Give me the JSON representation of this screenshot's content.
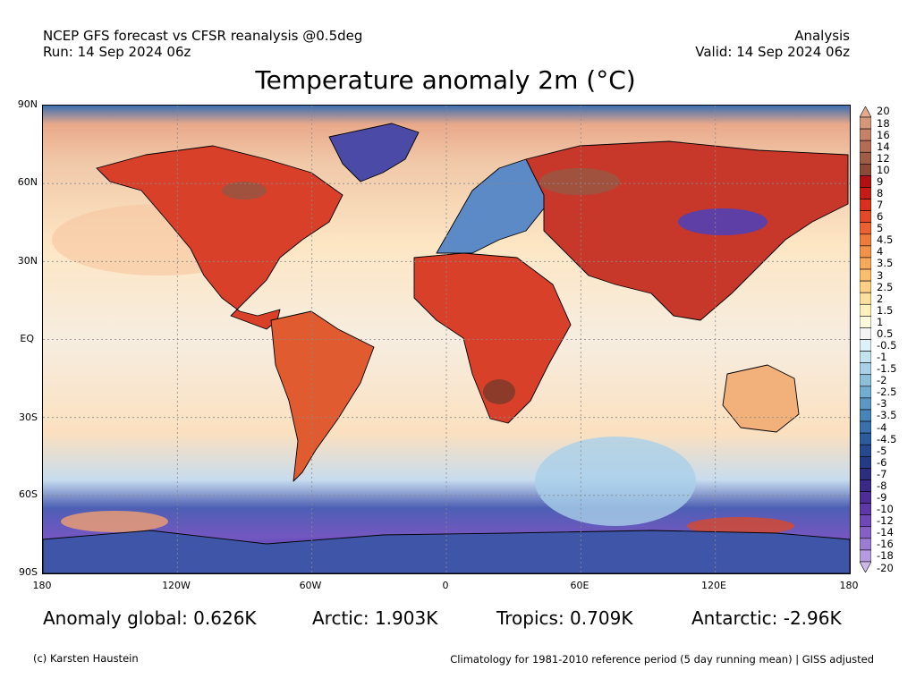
{
  "header": {
    "source": "NCEP GFS forecast vs CFSR reanalysis @0.5deg",
    "run": "Run: 14 Sep 2024 06z",
    "kind": "Analysis",
    "valid": "Valid: 14 Sep 2024 06z"
  },
  "title": "Temperature anomaly 2m (°C)",
  "map": {
    "lat_labels": [
      "90N",
      "60N",
      "30N",
      "EQ",
      "30S",
      "60S",
      "90S"
    ],
    "lon_labels": [
      "180",
      "120W",
      "60W",
      "0",
      "60E",
      "120E",
      "180"
    ],
    "grid": true,
    "projection": "equirectangular",
    "extent": {
      "lon": [
        -180,
        180
      ],
      "lat": [
        -90,
        90
      ]
    }
  },
  "colorbar": {
    "labels": [
      "20",
      "18",
      "16",
      "14",
      "12",
      "10",
      "9",
      "8",
      "7",
      "6",
      "5",
      "4.5",
      "4",
      "3.5",
      "3",
      "2.5",
      "2",
      "1.5",
      "1",
      "0.5",
      "-0.5",
      "-1",
      "-1.5",
      "-2",
      "-2.5",
      "-3",
      "-3.5",
      "-4",
      "-4.5",
      "-5",
      "-6",
      "-7",
      "-8",
      "-9",
      "-10",
      "-12",
      "-14",
      "-16",
      "-18",
      "-20"
    ],
    "colors": [
      "#e6ab8e",
      "#d7967a",
      "#c68166",
      "#b46d54",
      "#a15c45",
      "#8c4a36",
      "#b01010",
      "#c71c16",
      "#d8301d",
      "#e34828",
      "#ec6032",
      "#f07a3c",
      "#f5924a",
      "#f8a85b",
      "#fbbd70",
      "#fdd086",
      "#fee09e",
      "#fff0bc",
      "#fff9dd",
      "#f4f4f4",
      "#def0f8",
      "#c4e2f0",
      "#a8d1e7",
      "#8cbfdc",
      "#72add2",
      "#5b98c6",
      "#4684b9",
      "#3870ac",
      "#2d5c9e",
      "#274990",
      "#253a84",
      "#2a2e7c",
      "#3a2a86",
      "#4c2e96",
      "#5d38a8",
      "#6f48b8",
      "#8460c6",
      "#9b7cd3",
      "#b49ade",
      "#cdbae9"
    ]
  },
  "stats": {
    "global": "Anomaly global: 0.626K",
    "arctic": "Arctic: 1.903K",
    "tropics": "Tropics: 0.709K",
    "antarctic": "Antarctic: -2.96K"
  },
  "footer": {
    "credit": "(c) Karsten Haustein",
    "climatology": "Climatology for 1981-2010 reference period (5 day running mean) | GISS adjusted"
  }
}
